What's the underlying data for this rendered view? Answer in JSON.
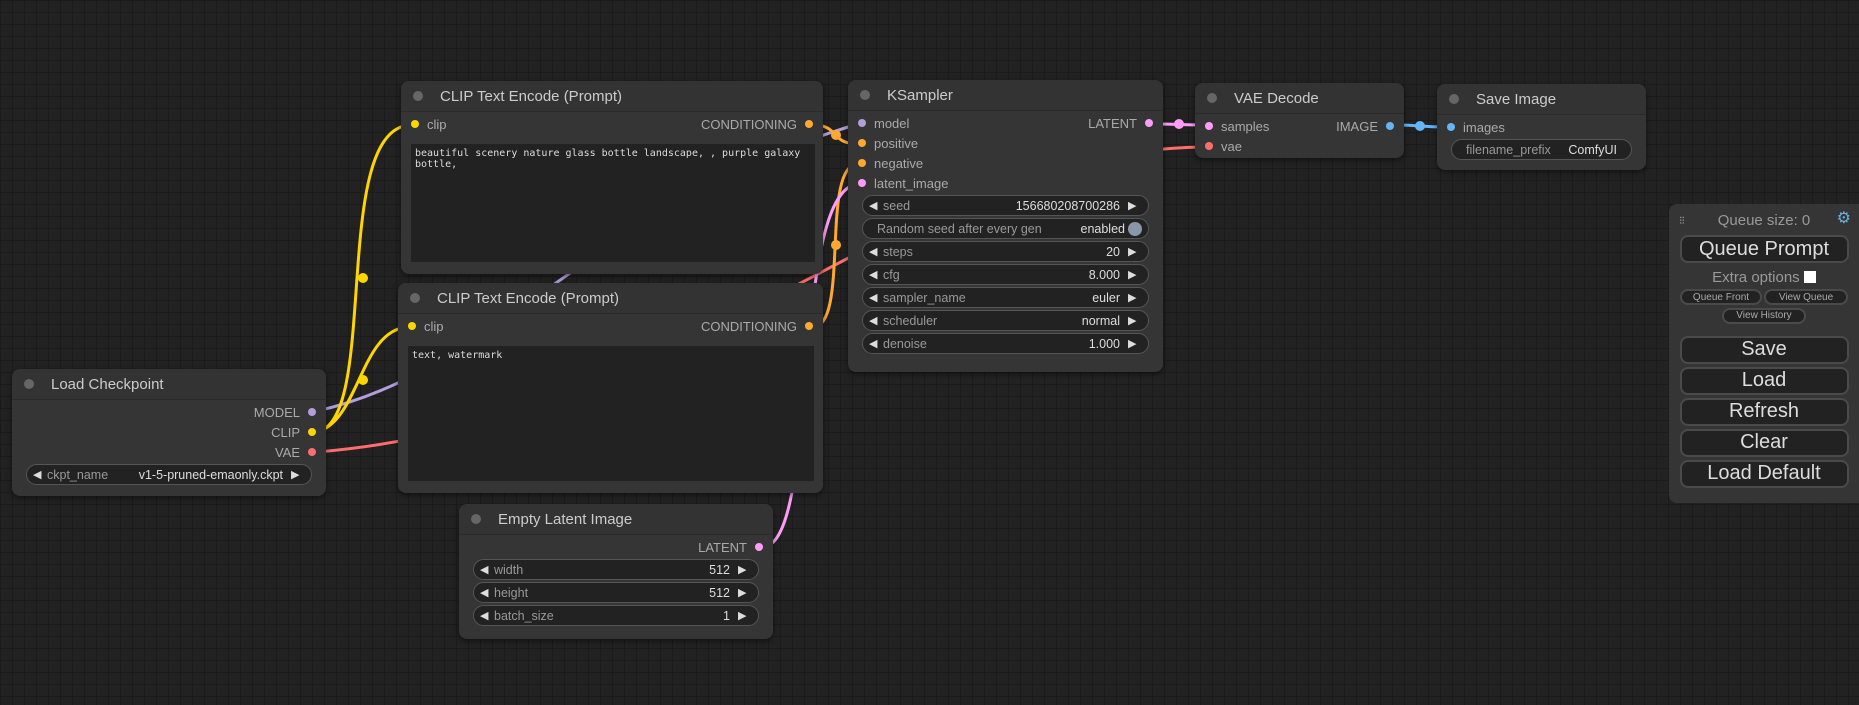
{
  "colors": {
    "clip": "#ffd500",
    "model": "#b39ddb",
    "vae": "#ff6e6e",
    "conditioning": "#ffa931",
    "latent": "#ff9cf9",
    "image": "#64b5f6"
  },
  "clip1": {
    "title": "CLIP Text Encode (Prompt)",
    "input": "clip",
    "output": "CONDITIONING",
    "text": "beautiful scenery nature glass bottle landscape, , purple galaxy bottle,"
  },
  "clip2": {
    "title": "CLIP Text Encode (Prompt)",
    "input": "clip",
    "output": "CONDITIONING",
    "text": "text, watermark"
  },
  "ckpt": {
    "title": "Load Checkpoint",
    "outputs": [
      "MODEL",
      "CLIP",
      "VAE"
    ],
    "widget": {
      "name": "ckpt_name",
      "value": "v1-5-pruned-emaonly.ckpt"
    }
  },
  "latent": {
    "title": "Empty Latent Image",
    "output": "LATENT",
    "widgets": [
      {
        "name": "width",
        "value": "512"
      },
      {
        "name": "height",
        "value": "512"
      },
      {
        "name": "batch_size",
        "value": "1"
      }
    ]
  },
  "ksampler": {
    "title": "KSampler",
    "inputs": [
      "model",
      "positive",
      "negative",
      "latent_image"
    ],
    "output": "LATENT",
    "seed": {
      "name": "seed",
      "value": "156680208700286"
    },
    "random": {
      "name": "Random seed after every gen",
      "value": "enabled"
    },
    "widgets": [
      {
        "name": "steps",
        "value": "20"
      },
      {
        "name": "cfg",
        "value": "8.000"
      },
      {
        "name": "sampler_name",
        "value": "euler"
      },
      {
        "name": "scheduler",
        "value": "normal"
      },
      {
        "name": "denoise",
        "value": "1.000"
      }
    ]
  },
  "vae": {
    "title": "VAE Decode",
    "inputs": [
      "samples",
      "vae"
    ],
    "output": "IMAGE"
  },
  "save": {
    "title": "Save Image",
    "input": "images",
    "widget": {
      "name": "filename_prefix",
      "value": "ComfyUI"
    }
  },
  "panel": {
    "queue_size": "Queue size: 0",
    "queue_prompt": "Queue Prompt",
    "extra_options": "Extra options",
    "queue_front": "Queue Front",
    "view_queue": "View Queue",
    "view_history": "View History",
    "save": "Save",
    "load": "Load",
    "refresh": "Refresh",
    "clear": "Clear",
    "load_default": "Load Default"
  }
}
